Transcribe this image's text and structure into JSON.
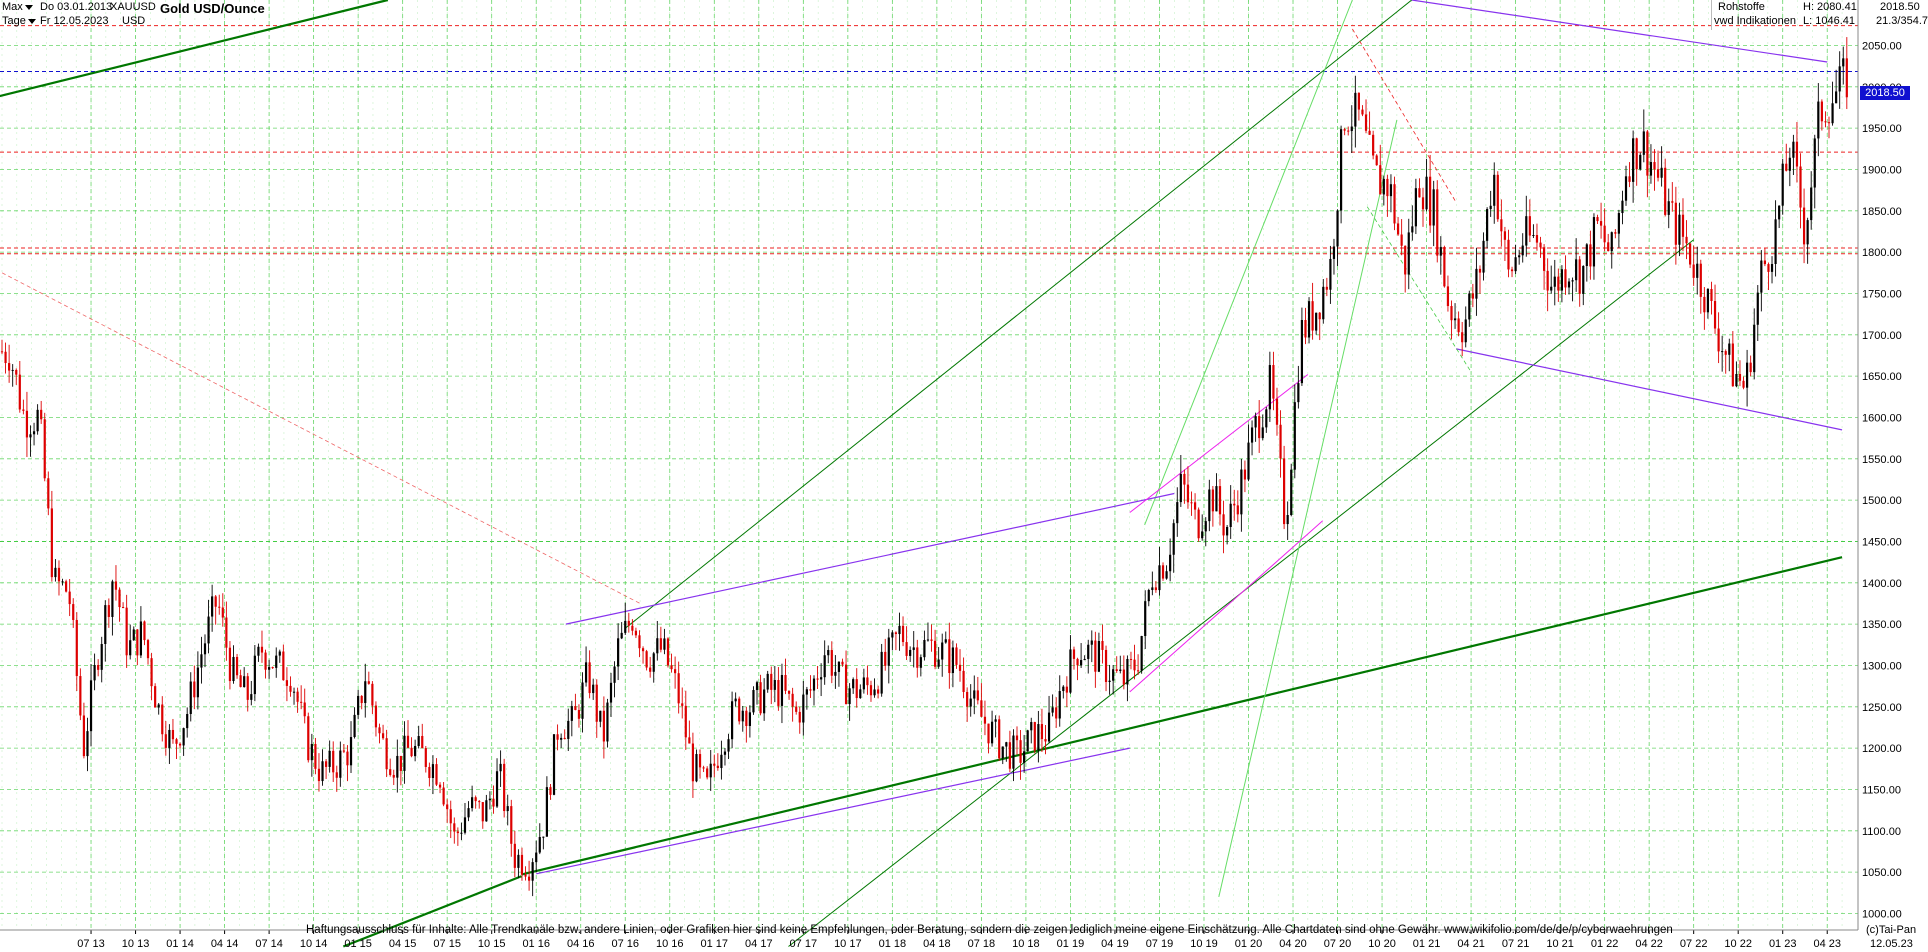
{
  "header": {
    "range_label": "Max",
    "interval_label": "Tage",
    "start_date": "Do 03.01.2013",
    "end_date": "Fr 12.05.2023",
    "symbol": "XAUUSD",
    "currency": "USD",
    "title": "Gold USD/Ounce",
    "category": "Rohstoffe",
    "provider": "vwd Indikationen",
    "high": "H: 2080.41",
    "low": "L: 1046.41",
    "last": "2018.50",
    "ratio": "21.3/354.7"
  },
  "price_tag": "2018.50",
  "footer": {
    "disclaimer": "Haftungsausschluss für Inhalte: Alle Trendkanäle bzw. andere Linien, oder Grafiken hier sind keine Empfehlungen, oder Beratung, sondern die zeigen lediglich meine eigene Einschätzung. Alle Chartdaten sind ohne Gewähr.  www.wikifolio.com/de/de/p/cyberwaehrungen",
    "copyright": "(c)Tai-Pan",
    "end_date": "12.05.23"
  },
  "colors": {
    "candle_up": "#000000",
    "candle_down": "#dd0000",
    "grid": "#44cc44",
    "trend_green": "#007700",
    "trend_light": "#66dd66",
    "trend_purple": "#8833ee",
    "trend_magenta": "#ee22ee",
    "level_red": "#ee2222",
    "level_blue": "#1010d0"
  },
  "chart_data": {
    "type": "candlestick",
    "title": "Gold USD/Ounce",
    "ylim": [
      980,
      2105
    ],
    "y_ticks": [
      1000,
      1050,
      1100,
      1150,
      1200,
      1250,
      1300,
      1350,
      1400,
      1450,
      1500,
      1550,
      1600,
      1650,
      1700,
      1750,
      1800,
      1850,
      1900,
      1950,
      2000,
      2050
    ],
    "y_tick_labels": [
      "1000.00",
      "1050.00",
      "1100.00",
      "1150.00",
      "1200.00",
      "1250.00",
      "1300.00",
      "1350.00",
      "1400.00",
      "1450.00",
      "1500.00",
      "1550.00",
      "1600.00",
      "1650.00",
      "1700.00",
      "1750.00",
      "1800.00",
      "1850.00",
      "1900.00",
      "1950.00",
      "2000.00",
      "2050.00"
    ],
    "x_ticks": [
      "07 13",
      "10 13",
      "01 14",
      "04 14",
      "07 14",
      "10 14",
      "01 15",
      "04 15",
      "07 15",
      "10 15",
      "01 16",
      "04 16",
      "07 16",
      "10 16",
      "01 17",
      "04 17",
      "07 17",
      "10 17",
      "01 18",
      "04 18",
      "07 18",
      "10 18",
      "01 19",
      "04 19",
      "07 19",
      "10 19",
      "01 20",
      "04 20",
      "07 20",
      "10 20",
      "01 21",
      "04 21",
      "07 21",
      "10 21",
      "01 22",
      "04 22",
      "07 22",
      "10 22",
      "01 23",
      "04 23"
    ],
    "x_start": "2013-01",
    "x_end": "2023-05",
    "last_price": 2018.5,
    "high": 2080.41,
    "low": 1046.41,
    "price_path": [
      [
        "2013-01",
        1680
      ],
      [
        "2013-02",
        1600
      ],
      [
        "2013-03",
        1600
      ],
      [
        "2013-04",
        1400
      ],
      [
        "2013-05",
        1390
      ],
      [
        "2013-06",
        1200
      ],
      [
        "2013-07",
        1320
      ],
      [
        "2013-08",
        1410
      ],
      [
        "2013-09",
        1320
      ],
      [
        "2013-10",
        1340
      ],
      [
        "2013-11",
        1250
      ],
      [
        "2013-12",
        1200
      ],
      [
        "2014-01",
        1245
      ],
      [
        "2014-02",
        1320
      ],
      [
        "2014-03",
        1380
      ],
      [
        "2014-04",
        1290
      ],
      [
        "2014-05",
        1260
      ],
      [
        "2014-06",
        1320
      ],
      [
        "2014-07",
        1300
      ],
      [
        "2014-08",
        1290
      ],
      [
        "2014-09",
        1210
      ],
      [
        "2014-10",
        1170
      ],
      [
        "2014-11",
        1180
      ],
      [
        "2014-12",
        1200
      ],
      [
        "2015-01",
        1290
      ],
      [
        "2015-02",
        1210
      ],
      [
        "2015-03",
        1180
      ],
      [
        "2015-04",
        1200
      ],
      [
        "2015-05",
        1190
      ],
      [
        "2015-06",
        1170
      ],
      [
        "2015-07",
        1090
      ],
      [
        "2015-08",
        1130
      ],
      [
        "2015-09",
        1120
      ],
      [
        "2015-10",
        1170
      ],
      [
        "2015-11",
        1070
      ],
      [
        "2015-12",
        1060
      ],
      [
        "2016-01",
        1110
      ],
      [
        "2016-02",
        1230
      ],
      [
        "2016-03",
        1230
      ],
      [
        "2016-04",
        1290
      ],
      [
        "2016-05",
        1210
      ],
      [
        "2016-06",
        1320
      ],
      [
        "2016-07",
        1360
      ],
      [
        "2016-08",
        1310
      ],
      [
        "2016-09",
        1320
      ],
      [
        "2016-10",
        1270
      ],
      [
        "2016-11",
        1180
      ],
      [
        "2016-12",
        1150
      ],
      [
        "2017-01",
        1210
      ],
      [
        "2017-02",
        1250
      ],
      [
        "2017-03",
        1250
      ],
      [
        "2017-04",
        1270
      ],
      [
        "2017-05",
        1270
      ],
      [
        "2017-06",
        1240
      ],
      [
        "2017-07",
        1270
      ],
      [
        "2017-08",
        1320
      ],
      [
        "2017-09",
        1280
      ],
      [
        "2017-10",
        1270
      ],
      [
        "2017-11",
        1275
      ],
      [
        "2017-12",
        1300
      ],
      [
        "2018-01",
        1340
      ],
      [
        "2018-02",
        1320
      ],
      [
        "2018-03",
        1325
      ],
      [
        "2018-04",
        1315
      ],
      [
        "2018-05",
        1300
      ],
      [
        "2018-06",
        1250
      ],
      [
        "2018-07",
        1225
      ],
      [
        "2018-08",
        1200
      ],
      [
        "2018-09",
        1190
      ],
      [
        "2018-10",
        1215
      ],
      [
        "2018-11",
        1220
      ],
      [
        "2018-12",
        1280
      ],
      [
        "2019-01",
        1320
      ],
      [
        "2019-02",
        1315
      ],
      [
        "2019-03",
        1295
      ],
      [
        "2019-04",
        1280
      ],
      [
        "2019-05",
        1305
      ],
      [
        "2019-06",
        1410
      ],
      [
        "2019-07",
        1430
      ],
      [
        "2019-08",
        1520
      ],
      [
        "2019-09",
        1470
      ],
      [
        "2019-10",
        1510
      ],
      [
        "2019-11",
        1465
      ],
      [
        "2019-12",
        1520
      ],
      [
        "2020-01",
        1590
      ],
      [
        "2020-02",
        1640
      ],
      [
        "2020-03",
        1470
      ],
      [
        "2020-04",
        1700
      ],
      [
        "2020-05",
        1730
      ],
      [
        "2020-06",
        1780
      ],
      [
        "2020-07",
        1970
      ],
      [
        "2020-08",
        1960
      ],
      [
        "2020-09",
        1890
      ],
      [
        "2020-10",
        1880
      ],
      [
        "2020-11",
        1780
      ],
      [
        "2020-12",
        1890
      ],
      [
        "2021-01",
        1850
      ],
      [
        "2021-02",
        1735
      ],
      [
        "2021-03",
        1710
      ],
      [
        "2021-04",
        1770
      ],
      [
        "2021-05",
        1900
      ],
      [
        "2021-06",
        1770
      ],
      [
        "2021-07",
        1815
      ],
      [
        "2021-08",
        1815
      ],
      [
        "2021-09",
        1755
      ],
      [
        "2021-10",
        1785
      ],
      [
        "2021-11",
        1775
      ],
      [
        "2021-12",
        1830
      ],
      [
        "2022-01",
        1795
      ],
      [
        "2022-02",
        1910
      ],
      [
        "2022-03",
        1935
      ],
      [
        "2022-04",
        1895
      ],
      [
        "2022-05",
        1840
      ],
      [
        "2022-06",
        1810
      ],
      [
        "2022-07",
        1765
      ],
      [
        "2022-08",
        1710
      ],
      [
        "2022-09",
        1660
      ],
      [
        "2022-10",
        1635
      ],
      [
        "2022-11",
        1770
      ],
      [
        "2022-12",
        1825
      ],
      [
        "2023-01",
        1930
      ],
      [
        "2023-02",
        1825
      ],
      [
        "2023-03",
        1970
      ],
      [
        "2023-04",
        1990
      ],
      [
        "2023-05",
        2015
      ]
    ],
    "horizontal_levels": [
      {
        "price": 2074,
        "color": "#ee2222",
        "style": "dash"
      },
      {
        "price": 2018.5,
        "color": "#1010d0",
        "style": "dash"
      },
      {
        "price": 1921,
        "color": "#ee2222",
        "style": "dash"
      },
      {
        "price": 1805,
        "color": "#ee2222",
        "style": "dash"
      },
      {
        "price": 1798,
        "color": "#ee2222",
        "style": "dash"
      },
      {
        "price": 1450,
        "color": "#44cc44",
        "style": "dash"
      }
    ],
    "trend_lines": [
      {
        "from": [
          "2012-12",
          1985
        ],
        "to": [
          "2015-03",
          2105
        ],
        "color": "#007700",
        "width": 2.2
      },
      {
        "from": [
          "2015-12",
          1047
        ],
        "to": [
          "2023-05",
          1431
        ],
        "color": "#007700",
        "width": 2.2
      },
      {
        "from": [
          "2014-12",
          960
        ],
        "to": [
          "2015-12",
          1045
        ],
        "color": "#007700",
        "width": 2.2
      },
      {
        "from": [
          "2016-07",
          1345
        ],
        "to": [
          "2020-12",
          2105
        ],
        "color": "#007700",
        "width": 1
      },
      {
        "from": [
          "2017-06",
          960
        ],
        "to": [
          "2022-07",
          1815
        ],
        "color": "#007700",
        "width": 1
      },
      {
        "from": [
          "2019-11",
          1020
        ],
        "to": [
          "2020-11",
          1960
        ],
        "color": "#66dd66",
        "width": 1
      },
      {
        "from": [
          "2019-06",
          1470
        ],
        "to": [
          "2020-08",
          2105
        ],
        "color": "#66dd66",
        "width": 1
      },
      {
        "from": [
          "2016-03",
          1350
        ],
        "to": [
          "2019-08",
          1508
        ],
        "color": "#8833ee",
        "width": 1.2
      },
      {
        "from": [
          "2016-01",
          1048
        ],
        "to": [
          "2019-05",
          1200
        ],
        "color": "#8833ee",
        "width": 1.2
      },
      {
        "from": [
          "2021-03",
          1683
        ],
        "to": [
          "2023-05",
          1585
        ],
        "color": "#8833ee",
        "width": 1.2
      },
      {
        "from": [
          "2020-12",
          2105
        ],
        "to": [
          "2023-04",
          2030
        ],
        "color": "#8833ee",
        "width": 1.2
      },
      {
        "from": [
          "2019-05",
          1485
        ],
        "to": [
          "2020-05",
          1652
        ],
        "color": "#ee22ee",
        "width": 1
      },
      {
        "from": [
          "2019-05",
          1268
        ],
        "to": [
          "2020-06",
          1475
        ],
        "color": "#ee22ee",
        "width": 1
      },
      {
        "from": [
          "2013-01",
          1775
        ],
        "to": [
          "2016-08",
          1375
        ],
        "color": "#ee6666",
        "width": 0.8,
        "dash": true
      },
      {
        "from": [
          "2020-08",
          2070
        ],
        "to": [
          "2021-03",
          1860
        ],
        "color": "#ee2222",
        "width": 0.8,
        "dash": true
      },
      {
        "from": [
          "2020-09",
          1855
        ],
        "to": [
          "2021-04",
          1655
        ],
        "color": "#44cc44",
        "width": 0.8,
        "dash": true
      }
    ]
  }
}
